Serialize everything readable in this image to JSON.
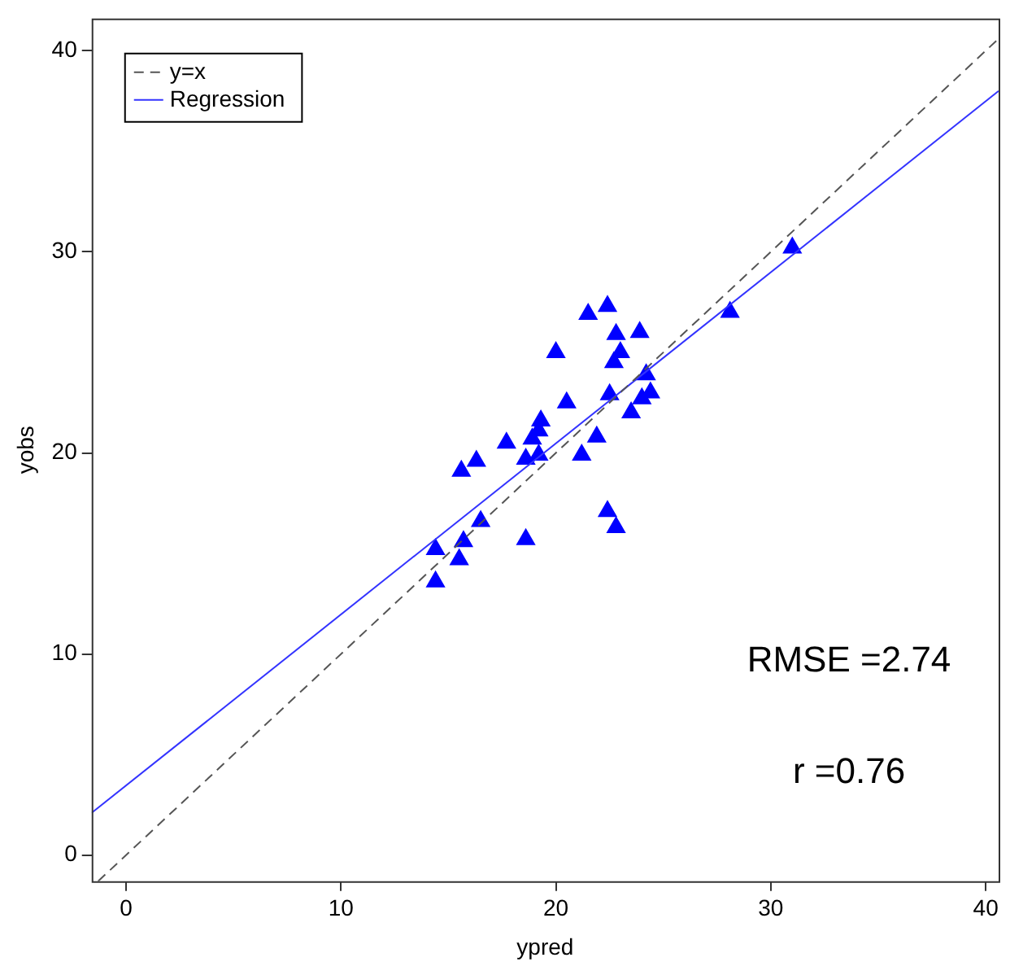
{
  "chart_data": {
    "type": "scatter",
    "xlabel": "ypred",
    "ylabel": "yobs",
    "xlim": [
      -1.6,
      40.6
    ],
    "ylim": [
      -1.3,
      41.6
    ],
    "xticks": [
      0,
      10,
      20,
      30,
      40
    ],
    "yticks": [
      0,
      10,
      20,
      30,
      40
    ],
    "grid": false,
    "legend": "top left",
    "marker": "triangle",
    "series": [
      {
        "type": "line",
        "name": "y=x",
        "color": "#555555",
        "line_style": "dashed",
        "marker": "none",
        "x": [
          -1.3,
          40.6
        ],
        "values": [
          -1.3,
          40.6
        ]
      },
      {
        "type": "line",
        "name": "Regression",
        "color": "#3333ff",
        "line_style": "solid",
        "marker": "none",
        "x": [
          -1.6,
          40.6
        ],
        "values": [
          2.1,
          38.0
        ]
      },
      {
        "color": "#0000ff",
        "x": [
          31.0,
          28.1,
          22.4,
          21.5,
          22.8,
          23.9,
          23.0,
          22.7,
          20.0,
          24.2,
          24.4,
          24.0,
          23.5,
          22.5,
          20.5,
          19.3,
          19.2,
          18.9,
          17.7,
          21.9,
          19.2,
          18.6,
          21.2,
          15.6,
          16.3,
          22.4,
          22.8,
          18.6,
          16.5,
          15.7,
          14.4,
          15.5,
          14.4
        ],
        "values": [
          30.2,
          27.0,
          27.3,
          26.9,
          25.9,
          26.0,
          25.0,
          24.5,
          25.0,
          23.9,
          23.0,
          22.7,
          22.0,
          22.9,
          22.5,
          21.6,
          21.1,
          20.7,
          20.5,
          20.8,
          19.9,
          19.7,
          19.9,
          19.1,
          19.6,
          17.1,
          16.3,
          15.7,
          16.6,
          15.6,
          15.2,
          14.7,
          13.6
        ]
      }
    ],
    "annotations": [
      "RMSE =2.74",
      "r =0.76"
    ]
  }
}
